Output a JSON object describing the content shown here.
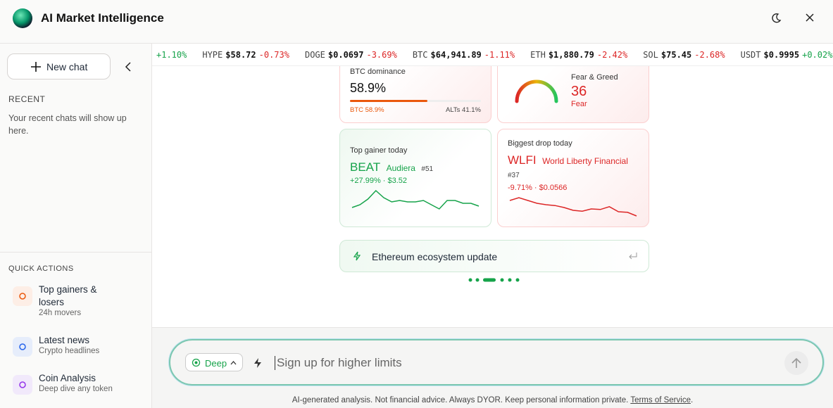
{
  "header": {
    "title": "AI Market Intelligence"
  },
  "sidebar": {
    "new_chat": "New chat",
    "recent_title": "RECENT",
    "recent_empty": "Your recent chats will show up here.",
    "quick_title": "QUICK ACTIONS",
    "quick_actions": [
      {
        "title": "Top gainers & losers",
        "subtitle": "24h movers"
      },
      {
        "title": "Latest news",
        "subtitle": "Crypto headlines"
      },
      {
        "title": "Coin Analysis",
        "subtitle": "Deep dive any token"
      }
    ]
  },
  "ticker": [
    {
      "change": "+1.10%"
    },
    {
      "symbol": "HYPE",
      "price": "$58.72",
      "change": "-0.73%"
    },
    {
      "symbol": "DOGE",
      "price": "$0.0697",
      "change": "-3.69%"
    },
    {
      "symbol": "BTC",
      "price": "$64,941.89",
      "change": "-1.11%"
    },
    {
      "symbol": "ETH",
      "price": "$1,880.79",
      "change": "-2.42%"
    },
    {
      "symbol": "SOL",
      "price": "$75.45",
      "change": "-2.68%"
    },
    {
      "symbol": "USDT",
      "price": "$0.9995",
      "change": "+0.02%"
    }
  ],
  "btc_dominance": {
    "label": "BTC dominance",
    "value": "58.9%",
    "share": 58.9,
    "left": "BTC 58.9%",
    "right": "ALTs 41.1%"
  },
  "fear_greed": {
    "label": "Fear & Greed",
    "value": 36,
    "status": "Fear"
  },
  "top_gainer": {
    "label": "Top gainer today",
    "symbol": "BEAT",
    "name": "Audiera",
    "rank": "#51",
    "stats": "+27.99% · $3.52",
    "sparkline": [
      2,
      4,
      8,
      14,
      9,
      6,
      7,
      6,
      6,
      7,
      4,
      1,
      7,
      7,
      5,
      5,
      3
    ]
  },
  "biggest_drop": {
    "label": "Biggest drop today",
    "symbol": "WLFI",
    "name": "World Liberty Financial",
    "rank": "#37",
    "stats": "-9.71% · $0.0566",
    "sparkline": [
      10,
      11,
      10,
      9,
      8.5,
      8.2,
      7.5,
      6.5,
      6.2,
      7,
      6.8,
      7.8,
      6,
      5.8,
      4.5
    ]
  },
  "suggestion": "Ethereum ecosystem update",
  "input": {
    "mode": "Deep",
    "placeholder": "Sign up for higher limits"
  },
  "footer": {
    "disclaimer": "AI-generated analysis. Not financial advice. Always DYOR. Keep personal information private.",
    "link": "Terms of Service",
    "end": "."
  }
}
